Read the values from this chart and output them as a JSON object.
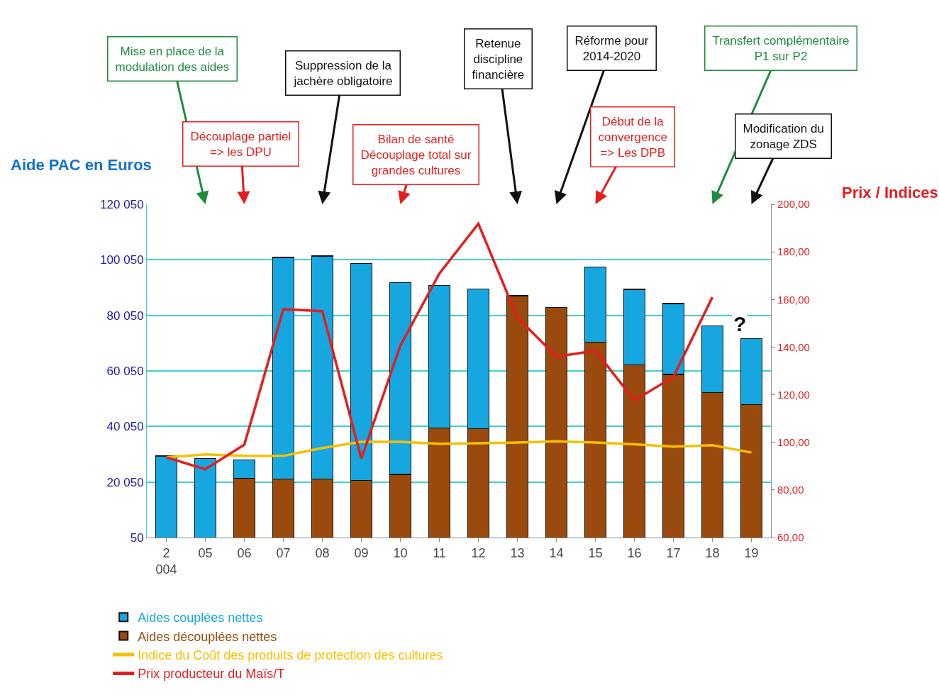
{
  "chart_data": {
    "type": "bar",
    "stacked": true,
    "ylabel": "Aide PAC en Euros",
    "y2label": "Prix / Indices",
    "categories": [
      "2\n004",
      "05",
      "06",
      "07",
      "08",
      "09",
      "10",
      "11",
      "12",
      "13",
      "14",
      "15",
      "16",
      "17",
      "18",
      "19"
    ],
    "series": [
      {
        "name": "Aides découplées nettes",
        "color": "#9a4a0c",
        "values": [
          null,
          null,
          21300,
          21100,
          21100,
          20600,
          22800,
          39500,
          39300,
          87100,
          83000,
          70300,
          62200,
          58800,
          52200,
          47900
        ]
      },
      {
        "name": "Aides couplées nettes",
        "color": "#16a6e0",
        "values": [
          29400,
          28500,
          6700,
          79800,
          80300,
          78200,
          69100,
          51400,
          50200,
          null,
          null,
          27100,
          27200,
          25500,
          24100,
          23700
        ]
      },
      {
        "name": "Indice du Coût des produits de protection des cultures",
        "type": "line",
        "axis": "y2",
        "color": "#f5c000",
        "values": [
          93.7,
          94.9,
          94.3,
          94.3,
          97.6,
          100.2,
          100.2,
          99.4,
          99.6,
          99.9,
          100.4,
          99.9,
          99.2,
          98.2,
          98.8,
          95.7
        ]
      },
      {
        "name": "Prix producteur du Maïs/T",
        "type": "line",
        "axis": "y2",
        "color": "#e41e1e",
        "values": [
          93.7,
          88.7,
          99.0,
          155.9,
          155.1,
          93.2,
          140.6,
          170.9,
          191.8,
          152.4,
          136.0,
          138.5,
          117.6,
          127.5,
          161.0,
          null
        ]
      }
    ],
    "ylim": [
      50,
      120050
    ],
    "yticks": [
      50,
      {
        "value": 20050,
        "label": "20 050"
      },
      {
        "value": 40050,
        "label": "40 050"
      },
      {
        "value": 60050,
        "label": "60 050"
      },
      {
        "value": 80050,
        "label": "80 050"
      },
      {
        "value": 100050,
        "label": "100 050"
      },
      {
        "value": 120050,
        "label": "120 050"
      }
    ],
    "y2lim": [
      60,
      200
    ],
    "y2ticks": [
      {
        "value": 60,
        "label": "60,00"
      },
      {
        "value": 80,
        "label": "80,00"
      },
      {
        "value": 100,
        "label": "100,00"
      },
      {
        "value": 120,
        "label": "120,00"
      },
      {
        "value": 140,
        "label": "140,00"
      },
      {
        "value": 160,
        "label": "160,00"
      },
      {
        "value": 180,
        "label": "180,00"
      },
      {
        "value": 200,
        "label": "200,00"
      }
    ],
    "grid": "y",
    "legend": "bottom",
    "annotations": [
      "Mise en place de la\nmodulation des aides",
      "Découplage partiel\n=> les DPU",
      "Suppression de la\njachère obligatoire",
      "Bilan de santé\nDécouplage total sur\ngrandes cultures",
      "Retenue\ndiscipline\nfinancière",
      "Réforme pour\n2014-2020",
      "Début de la\nconvergence\n=> Les DPB",
      "Transfert complémentaire\nP1 sur P2",
      "Modification du\nzonage ZDS",
      "?"
    ]
  }
}
